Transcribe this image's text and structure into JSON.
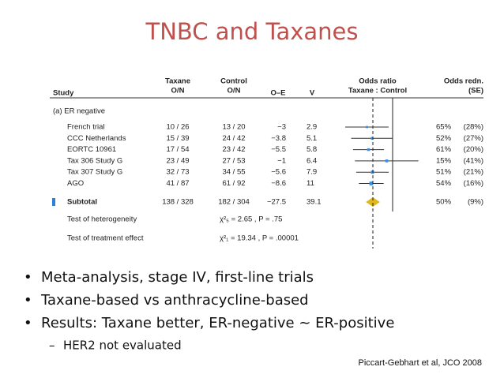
{
  "title": "TNBC and Taxanes",
  "table": {
    "headers": {
      "study": "Study",
      "taxane": [
        "Taxane",
        "O/N"
      ],
      "control": [
        "Control",
        "O/N"
      ],
      "oe": "O–E",
      "v": "V",
      "odds_ratio": [
        "Odds ratio",
        "Taxane : Control"
      ],
      "odds_redn": [
        "Odds redn.",
        "(SE)"
      ]
    },
    "section": "(a) ER negative",
    "rows": [
      {
        "study": "French trial",
        "taxane": "10 / 26",
        "control": "13 / 20",
        "oe": "−3",
        "v": "2.9",
        "redn": {
          "value": 65,
          "label": "65%"
        },
        "se": {
          "value": 28,
          "label": "(28%)"
        }
      },
      {
        "study": "CCC Netherlands",
        "taxane": "15 / 39",
        "control": "24 / 42",
        "oe": "−3.8",
        "v": "5.1",
        "redn": {
          "value": 52,
          "label": "52%"
        },
        "se": {
          "value": 27,
          "label": "(27%)"
        }
      },
      {
        "study": "EORTC 10961",
        "taxane": "17 / 54",
        "control": "23 / 42",
        "oe": "−5.5",
        "v": "5.8",
        "redn": {
          "value": 61,
          "label": "61%"
        },
        "se": {
          "value": 20,
          "label": "(20%)"
        }
      },
      {
        "study": "Tax 306 Study G",
        "taxane": "23 / 49",
        "control": "27 / 53",
        "oe": "−1",
        "v": "6.4",
        "redn": {
          "value": 15,
          "label": "15%"
        },
        "se": {
          "value": 41,
          "label": "(41%)"
        }
      },
      {
        "study": "Tax 307 Study G",
        "taxane": "32 / 73",
        "control": "34 / 55",
        "oe": "−5.6",
        "v": "7.9",
        "redn": {
          "value": 51,
          "label": "51%"
        },
        "se": {
          "value": 21,
          "label": "(21%)"
        }
      },
      {
        "study": "AGO",
        "taxane": "41 / 87",
        "control": "61 / 92",
        "oe": "−8.6",
        "v": "11",
        "redn": {
          "value": 54,
          "label": "54%"
        },
        "se": {
          "value": 16,
          "label": "(16%)"
        }
      }
    ],
    "subtotal": {
      "study": "Subtotal",
      "taxane": "138 / 328",
      "control": "182 / 304",
      "oe": "−27.5",
      "v": "39.1",
      "redn": {
        "value": 50,
        "label": "50%"
      },
      "se": {
        "value": 9,
        "label": "(9%)"
      }
    },
    "heterogeneity": {
      "label": "Test of heterogeneity",
      "stat": "χ²₅ = 2.65 , P = .75"
    },
    "treatment_effect": {
      "label": "Test of treatment effect",
      "stat": "χ²₁ = 19.34 , P = .00001"
    }
  },
  "bullets": [
    "Meta-analysis, stage IV, first-line trials",
    "Taxane-based vs anthracycline-based",
    "Results: Taxane better, ER-negative ~ ER-positive"
  ],
  "sub_bullets": [
    "HER2 not evaluated"
  ],
  "citation": "Piccart-Gebhart et al, JCO 2008"
}
